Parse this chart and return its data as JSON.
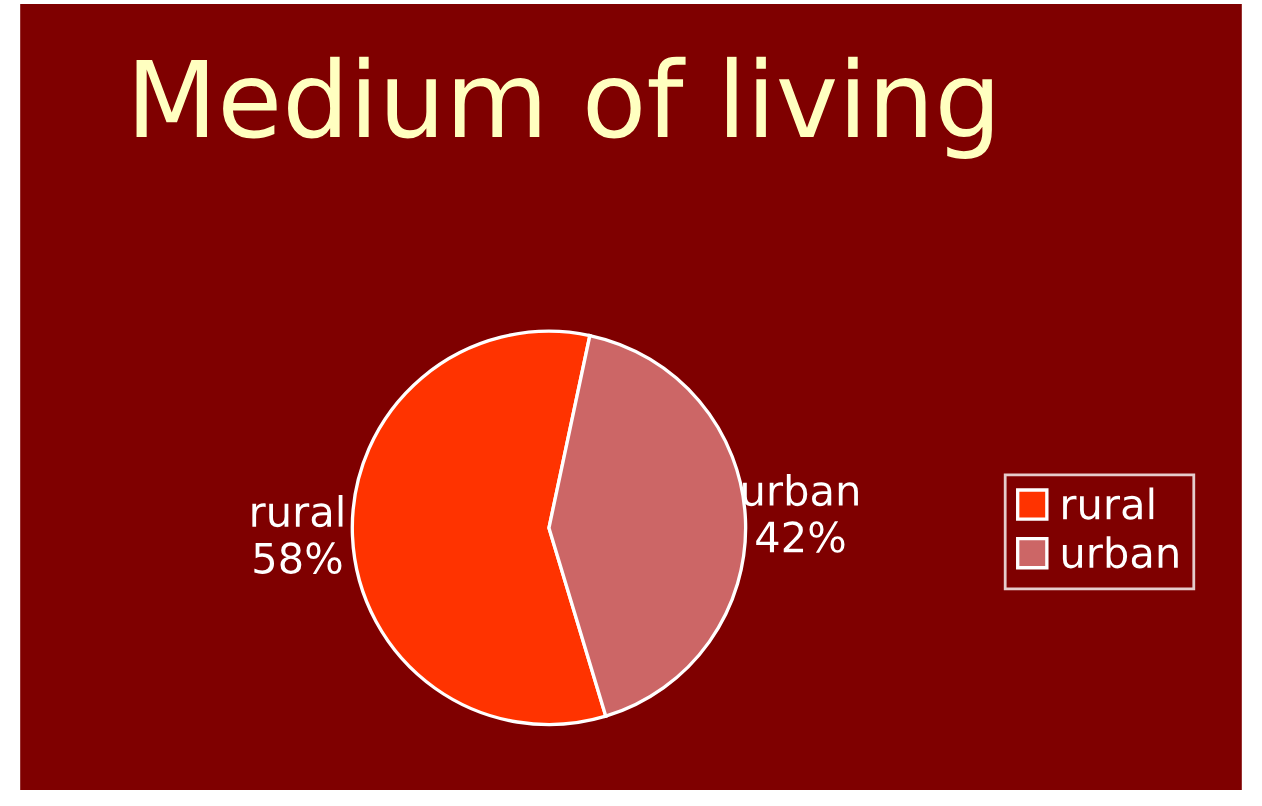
{
  "chart_data": {
    "type": "pie",
    "title": "Medium of living",
    "categories": [
      "rural",
      "urban"
    ],
    "values": [
      58,
      42
    ],
    "value_labels": [
      "58%",
      "42%"
    ],
    "colors": [
      "#ff3300",
      "#cc6666"
    ],
    "legend": "right"
  }
}
